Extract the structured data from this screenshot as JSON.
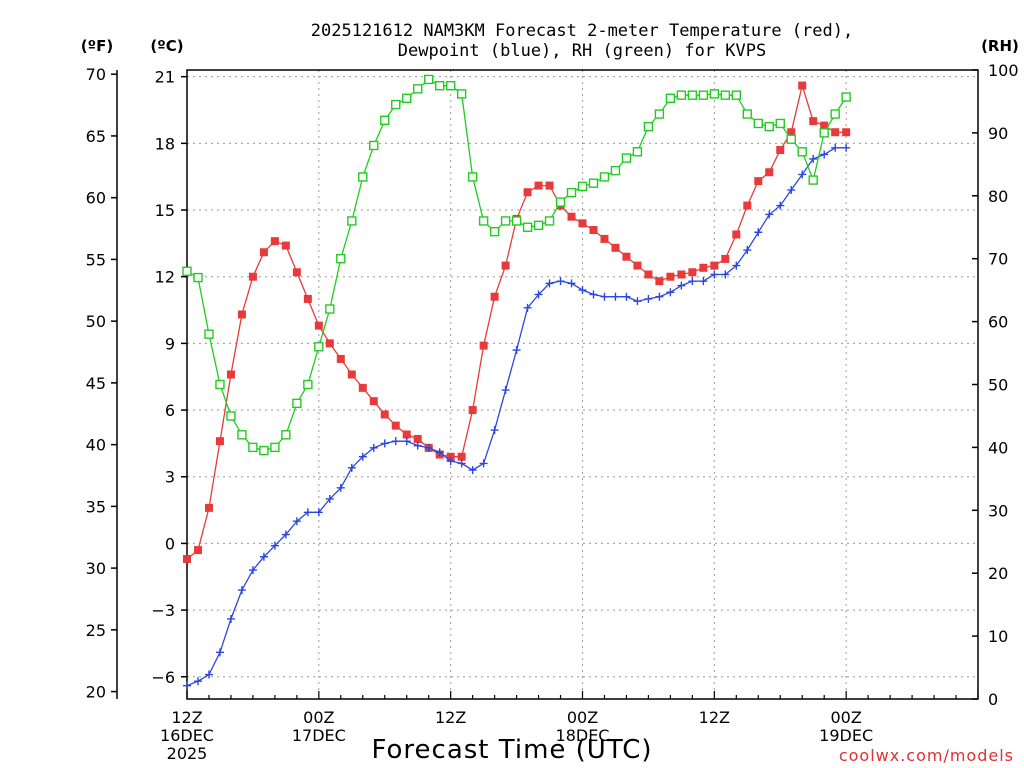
{
  "chart_data": {
    "type": "line",
    "title_line1": "2025121612 NAM3KM Forecast 2-meter Temperature (red),",
    "title_line2": "Dewpoint (blue), RH (green) for KVPS",
    "xlabel": "Forecast Time (UTC)",
    "watermark": "coolwx.com/models",
    "units": {
      "fahrenheit": "(ºF)",
      "celsius": "(ºC)",
      "rh": "(RH)"
    },
    "x_range_hours": [
      0,
      36
    ],
    "x_ticks": [
      {
        "hour": 0,
        "lines": [
          "12Z",
          "16DEC",
          "2025"
        ]
      },
      {
        "hour": 6,
        "lines": [
          "00Z",
          "17DEC"
        ]
      },
      {
        "hour": 12,
        "lines": [
          "12Z"
        ]
      },
      {
        "hour": 18,
        "lines": [
          "00Z",
          "18DEC"
        ]
      },
      {
        "hour": 24,
        "lines": [
          "12Z"
        ]
      },
      {
        "hour": 30,
        "lines": [
          "00Z",
          "19DEC"
        ]
      }
    ],
    "celsius_range": [
      -7,
      21.3
    ],
    "celsius_ticks": [
      "-6",
      "-3",
      "0",
      "3",
      "6",
      "9",
      "12",
      "15",
      "18",
      "21"
    ],
    "fahrenheit_ticks": [
      "20",
      "25",
      "30",
      "35",
      "40",
      "45",
      "50",
      "55",
      "60",
      "65",
      "70"
    ],
    "rh_range": [
      0,
      100
    ],
    "rh_ticks": [
      "0",
      "10",
      "20",
      "30",
      "40",
      "50",
      "60",
      "70",
      "80",
      "90",
      "100"
    ],
    "grid": true,
    "step_hours": 0.5,
    "series": [
      {
        "name": "2-meter Temperature",
        "unit": "C",
        "color": "#e83a3a",
        "marker": "filled-square",
        "values": [
          -0.7,
          -0.3,
          1.6,
          4.6,
          7.6,
          10.3,
          12.0,
          13.1,
          13.6,
          13.4,
          12.2,
          11.0,
          9.8,
          9.0,
          8.3,
          7.6,
          7.0,
          6.4,
          5.8,
          5.3,
          4.9,
          4.7,
          4.3,
          4.0,
          3.9,
          3.9,
          6.0,
          8.9,
          11.1,
          12.5,
          14.6,
          15.8,
          16.1,
          16.1,
          15.2,
          14.7,
          14.4,
          14.1,
          13.7,
          13.3,
          12.9,
          12.5,
          12.1,
          11.8,
          12.0,
          12.1,
          12.2,
          12.4,
          12.5,
          12.8,
          13.9,
          15.2,
          16.3,
          16.7,
          17.7,
          18.5,
          20.6,
          19.0,
          18.8,
          18.5,
          18.5
        ]
      },
      {
        "name": "Dewpoint",
        "unit": "C",
        "color": "#2b47e0",
        "marker": "plus",
        "values": [
          -6.4,
          -6.2,
          -5.9,
          -4.9,
          -3.4,
          -2.1,
          -1.2,
          -0.6,
          -0.1,
          0.4,
          1.0,
          1.4,
          1.4,
          2.0,
          2.5,
          3.4,
          3.9,
          4.3,
          4.5,
          4.6,
          4.6,
          4.4,
          4.3,
          4.1,
          3.7,
          3.6,
          3.3,
          3.6,
          5.1,
          6.9,
          8.7,
          10.6,
          11.2,
          11.7,
          11.8,
          11.7,
          11.4,
          11.2,
          11.1,
          11.1,
          11.1,
          10.9,
          11.0,
          11.1,
          11.3,
          11.6,
          11.8,
          11.8,
          12.1,
          12.1,
          12.5,
          13.2,
          14.0,
          14.8,
          15.2,
          15.9,
          16.6,
          17.3,
          17.5,
          17.8,
          17.8
        ]
      },
      {
        "name": "RH",
        "unit": "%",
        "color": "#21cc21",
        "marker": "open-square",
        "values": [
          68,
          67,
          58,
          50,
          45,
          42,
          40,
          39.5,
          40,
          42,
          47,
          50,
          56,
          62,
          70,
          76,
          83,
          88,
          92,
          94.5,
          95.5,
          97,
          98.5,
          97.5,
          97.5,
          96.2,
          83,
          76,
          74.3,
          76,
          76,
          75,
          75.3,
          76,
          79,
          80.5,
          81.5,
          82,
          83,
          84,
          86,
          87,
          91,
          93,
          95.5,
          96,
          96,
          96,
          96.2,
          96,
          96,
          93,
          91.5,
          91,
          91.5,
          89,
          87,
          82.5,
          90,
          93,
          95.7
        ]
      }
    ]
  }
}
